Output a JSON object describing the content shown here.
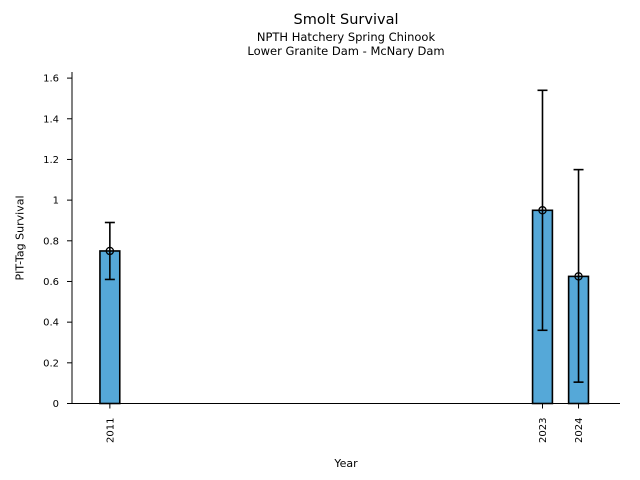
{
  "chart_data": {
    "type": "bar",
    "title": "Smolt Survival",
    "subtitle_lines": [
      "NPTH Hatchery Spring Chinook",
      "Lower Granite Dam - McNary Dam"
    ],
    "xlabel": "Year",
    "ylabel": "PIT-Tag Survival",
    "x": [
      2011,
      2023,
      2024
    ],
    "categories": [
      "2011",
      "2023",
      "2024"
    ],
    "values": [
      0.75,
      0.95,
      0.625
    ],
    "error_low": [
      0.61,
      0.36,
      0.105
    ],
    "error_high": [
      0.89,
      1.54,
      1.15
    ],
    "xlim": [
      2009.95,
      2025.15
    ],
    "ylim": [
      0,
      1.63
    ],
    "yticks": [
      0,
      0.2,
      0.4,
      0.6,
      0.8,
      1,
      1.2,
      1.4,
      1.6
    ],
    "ytick_labels": [
      "0",
      "0.2",
      "0.4",
      "0.6",
      "0.8",
      "1",
      "1.2",
      "1.4",
      "1.6"
    ],
    "bar_width_years": 0.55,
    "marker": "open-circle",
    "grid": false,
    "legend": "none",
    "colors": {
      "bar_fill": "#55a8d8",
      "bar_edge": "#000000",
      "errorbar": "#000000",
      "marker_edge": "#000000",
      "axis": "#000000",
      "text": "#000000",
      "background": "#ffffff"
    }
  }
}
